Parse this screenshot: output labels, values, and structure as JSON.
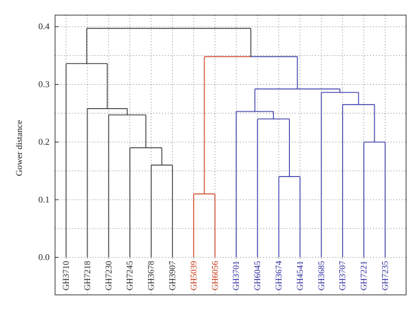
{
  "chart_data": {
    "type": "dendrogram",
    "ylabel": "Gower distance",
    "ylim": [
      -0.065,
      0.42
    ],
    "yticks": [
      0.0,
      0.1,
      0.2,
      0.3,
      0.4
    ],
    "ytick_labels": [
      "0.0",
      "0.1",
      "0.2",
      "0.3",
      "0.4"
    ],
    "grid": true,
    "colors": {
      "black_cluster": "#333333",
      "red_cluster": "#cc3a1a",
      "blue_cluster": "#3333a6",
      "grid": "#888888",
      "frame": "#222222"
    },
    "leaves": [
      {
        "label": "GH3710",
        "cluster": "black_cluster"
      },
      {
        "label": "GH7218",
        "cluster": "black_cluster"
      },
      {
        "label": "GH7230",
        "cluster": "black_cluster"
      },
      {
        "label": "GH7245",
        "cluster": "black_cluster"
      },
      {
        "label": "GH3678",
        "cluster": "black_cluster"
      },
      {
        "label": "GH3907",
        "cluster": "black_cluster"
      },
      {
        "label": "GH5039",
        "cluster": "red_cluster"
      },
      {
        "label": "GH6056",
        "cluster": "red_cluster"
      },
      {
        "label": "GH3701",
        "cluster": "blue_cluster"
      },
      {
        "label": "GH6045",
        "cluster": "blue_cluster"
      },
      {
        "label": "GH3674",
        "cluster": "blue_cluster"
      },
      {
        "label": "GH4541",
        "cluster": "blue_cluster"
      },
      {
        "label": "GH3685",
        "cluster": "blue_cluster"
      },
      {
        "label": "GH3707",
        "cluster": "blue_cluster"
      },
      {
        "label": "GH7221",
        "cluster": "blue_cluster"
      },
      {
        "label": "GH7235",
        "cluster": "blue_cluster"
      }
    ],
    "merges": [
      {
        "id": "m1",
        "left": 4,
        "right": 5,
        "height": 0.16,
        "cluster": "black_cluster"
      },
      {
        "id": "m2",
        "left": 3,
        "right": "m1",
        "height": 0.19,
        "cluster": "black_cluster"
      },
      {
        "id": "m3",
        "left": 2,
        "right": "m2",
        "height": 0.247,
        "cluster": "black_cluster"
      },
      {
        "id": "m4",
        "left": 1,
        "right": "m3",
        "height": 0.258,
        "cluster": "black_cluster"
      },
      {
        "id": "m5",
        "left": 0,
        "right": "m4",
        "height": 0.336,
        "cluster": "black_cluster"
      },
      {
        "id": "m6",
        "left": 6,
        "right": 7,
        "height": 0.11,
        "cluster": "red_cluster"
      },
      {
        "id": "m7",
        "left": 10,
        "right": 11,
        "height": 0.14,
        "cluster": "blue_cluster"
      },
      {
        "id": "m8",
        "left": 9,
        "right": "m7",
        "height": 0.24,
        "cluster": "blue_cluster"
      },
      {
        "id": "m9",
        "left": 8,
        "right": "m8",
        "height": 0.253,
        "cluster": "blue_cluster"
      },
      {
        "id": "m10",
        "left": 14,
        "right": 15,
        "height": 0.2,
        "cluster": "blue_cluster"
      },
      {
        "id": "m11",
        "left": 13,
        "right": "m10",
        "height": 0.265,
        "cluster": "blue_cluster"
      },
      {
        "id": "m12",
        "left": 12,
        "right": "m11",
        "height": 0.286,
        "cluster": "blue_cluster"
      },
      {
        "id": "m13",
        "left": "m9",
        "right": "m12",
        "height": 0.292,
        "cluster": "blue_cluster"
      },
      {
        "id": "m14",
        "left": "m6",
        "right": "m13",
        "height": 0.348,
        "cluster": "blue_cluster",
        "left_branch": "red_cluster"
      },
      {
        "id": "m15",
        "left": "m5",
        "right": "m14",
        "height": 0.397,
        "cluster": "black_cluster"
      }
    ]
  }
}
